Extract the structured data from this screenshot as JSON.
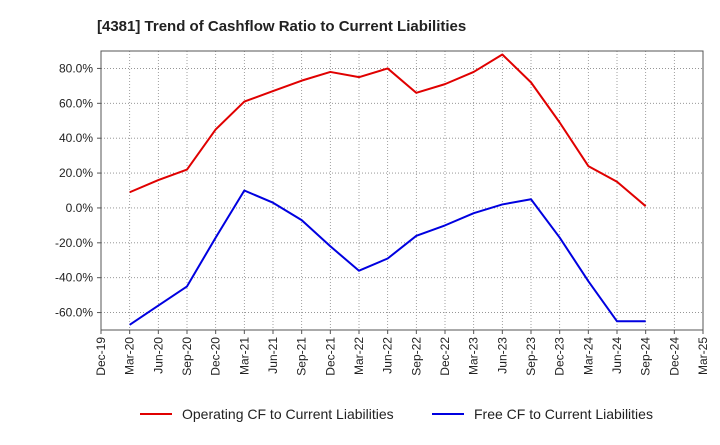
{
  "chart_data": {
    "type": "line",
    "title": "[4381]  Trend of Cashflow Ratio to Current Liabilities",
    "x": [
      "Dec-19",
      "Mar-20",
      "Jun-20",
      "Sep-20",
      "Dec-20",
      "Mar-21",
      "Jun-21",
      "Sep-21",
      "Dec-21",
      "Mar-22",
      "Jun-22",
      "Sep-22",
      "Dec-22",
      "Mar-23",
      "Jun-23",
      "Sep-23",
      "Dec-23",
      "Mar-24",
      "Jun-24",
      "Sep-24",
      "Dec-24",
      "Mar-25"
    ],
    "ylim": [
      -70,
      90
    ],
    "yticks": [
      -60,
      -40,
      -20,
      0,
      20,
      40,
      60,
      80
    ],
    "ytick_labels": [
      "-60.0%",
      "-40.0%",
      "-20.0%",
      "0.0%",
      "20.0%",
      "40.0%",
      "60.0%",
      "80.0%"
    ],
    "grid": true,
    "legend_position": "bottom",
    "series": [
      {
        "name": "Operating CF to Current Liabilities",
        "color": "#e00000",
        "values": [
          null,
          9,
          16,
          22,
          45,
          61,
          67,
          73,
          78,
          75,
          80,
          66,
          71,
          78,
          88,
          72,
          49,
          24,
          15,
          1,
          null,
          null
        ]
      },
      {
        "name": "Free CF to Current Liabilities",
        "color": "#0000e0",
        "values": [
          null,
          -67,
          -56,
          -45,
          -17,
          10,
          3,
          -7,
          -22,
          -36,
          -29,
          -16,
          -10,
          -3,
          2,
          5,
          -17,
          -42,
          -65,
          -65,
          null,
          null
        ]
      }
    ]
  }
}
